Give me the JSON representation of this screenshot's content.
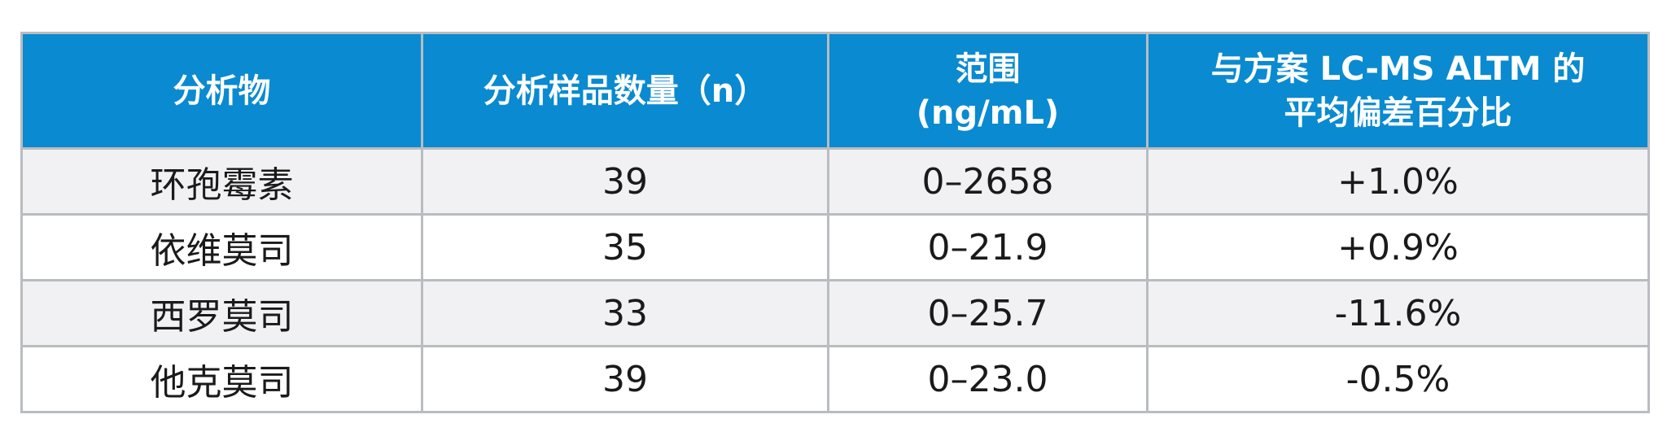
{
  "table": {
    "headers": {
      "analyte": "分析物",
      "sample_count": "分析样品数量（n）",
      "range_line1": "范围",
      "range_line2": "(ng/mL)",
      "bias_line1": "与方案 LC-MS ALTM 的",
      "bias_line2": "平均偏差百分比"
    },
    "rows": [
      {
        "analyte": "环孢霉素",
        "n": "39",
        "range": "0–2658",
        "bias": "+1.0%"
      },
      {
        "analyte": "依维莫司",
        "n": "35",
        "range": "0–21.9",
        "bias": "+0.9%"
      },
      {
        "analyte": "西罗莫司",
        "n": "33",
        "range": "0–25.7",
        "bias": "-11.6%"
      },
      {
        "analyte": "他克莫司",
        "n": "39",
        "range": "0–23.0",
        "bias": "-0.5%"
      }
    ]
  },
  "colors": {
    "header_bg": "#0a8ad0",
    "header_text": "#ffffff",
    "stripe_row": "#f1f1f3",
    "border": "#b9bcc0"
  }
}
